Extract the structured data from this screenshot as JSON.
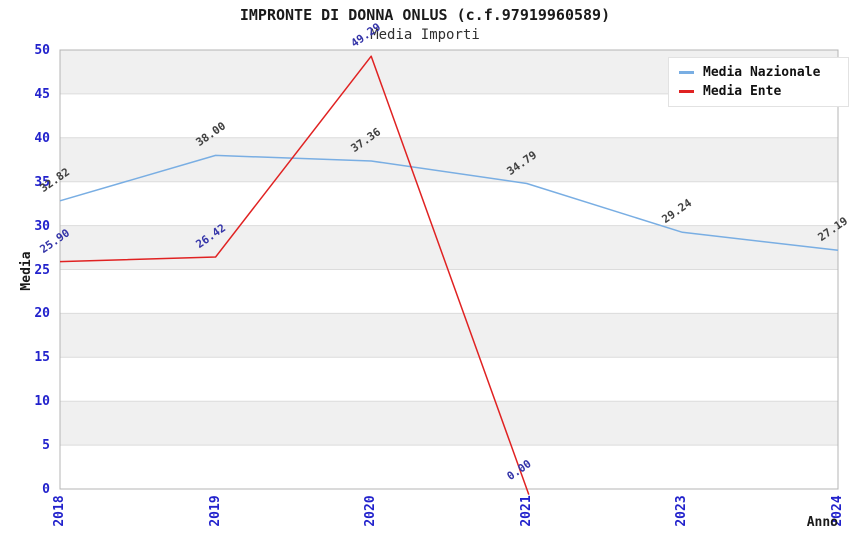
{
  "header": {
    "title": "IMPRONTE DI DONNA ONLUS (c.f.97919960589)",
    "subtitle": "Media Importi"
  },
  "legend": {
    "position": "top-right",
    "items": [
      {
        "label": "Media Nazionale",
        "color": "#79aee3"
      },
      {
        "label": "Media Ente",
        "color": "#e02222"
      }
    ]
  },
  "chart_data": {
    "type": "line",
    "title": "IMPRONTE DI DONNA ONLUS (c.f.97919960589)",
    "subtitle": "Media Importi",
    "xlabel": "Anno",
    "ylabel": "Media",
    "ylim": [
      0,
      50
    ],
    "y_ticks": [
      0,
      5,
      10,
      15,
      20,
      25,
      30,
      35,
      40,
      45,
      50
    ],
    "categories": [
      "2018",
      "2019",
      "2020",
      "2021",
      "2023",
      "2024"
    ],
    "series": [
      {
        "name": "Media Nazionale",
        "color": "#79aee3",
        "annotation_color": "#404040",
        "values": [
          32.82,
          38.0,
          37.36,
          34.79,
          29.24,
          27.19
        ]
      },
      {
        "name": "Media Ente",
        "color": "#e02222",
        "annotation_color": "#3434a8",
        "values": [
          25.9,
          26.42,
          49.29,
          0.0,
          null,
          null
        ]
      }
    ],
    "grid": true,
    "band_colors": [
      "#ffffff",
      "#f0f0f0"
    ],
    "gridline_color": "#dcdcdc",
    "spine_color": "#b4b4b4",
    "tick_label_color": "#2222cc",
    "legend_position": "top-right"
  }
}
